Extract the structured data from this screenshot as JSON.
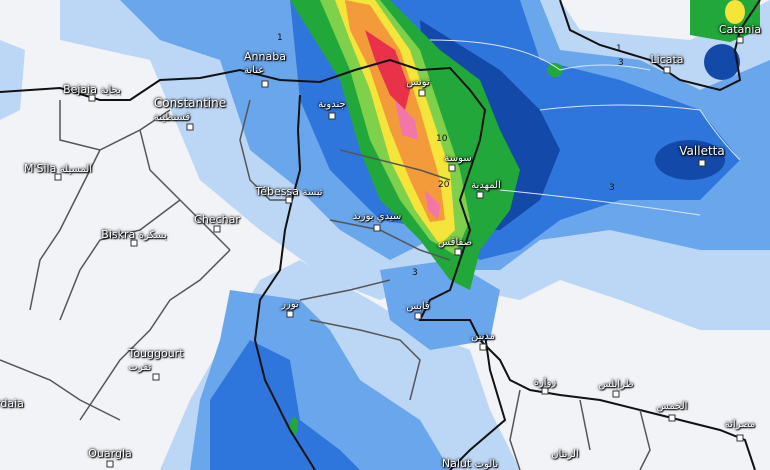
{
  "map": {
    "type": "precipitation forecast",
    "colors": {
      "land_dry": "#f1f3f6",
      "light_blue": "#bcd6f5",
      "blue": "#6aa6ec",
      "mid_blue": "#2f76dc",
      "dark_blue": "#1349a8",
      "green": "#22a83a",
      "light_green": "#7fd04a",
      "yellow": "#f5e43a",
      "orange": "#f39a3a",
      "red": "#e8324a",
      "pink": "#f277a8",
      "border": "#111111",
      "province": "#555555"
    },
    "cities": [
      {
        "name": "Annaba",
        "ar": "عنابة"
      },
      {
        "name": "Bejaia",
        "ar": "بجاية"
      },
      {
        "name": "Constantine",
        "ar": "قسنطينة"
      },
      {
        "name": "M'Sila",
        "ar": "المسيلة"
      },
      {
        "name": "Tébessa",
        "ar": "تبسة"
      },
      {
        "name": "Chechar",
        "ar": ""
      },
      {
        "name": "Biskra",
        "ar": "بسكرة"
      },
      {
        "name": "Touggourt",
        "ar": "تقرت"
      },
      {
        "name": "Ouargla",
        "ar": ""
      },
      {
        "name": "rdaia",
        "ar": ""
      },
      {
        "name": "Catania",
        "ar": ""
      },
      {
        "name": "Licata",
        "ar": ""
      },
      {
        "name": "Valletta",
        "ar": ""
      },
      {
        "name": "Nalut",
        "ar": "نالوت"
      },
      {
        "name": "",
        "ar": "تونس"
      },
      {
        "name": "",
        "ar": "جندوبة"
      },
      {
        "name": "",
        "ar": "سوسة"
      },
      {
        "name": "",
        "ar": "المهدية"
      },
      {
        "name": "",
        "ar": "سيدي بوزيد"
      },
      {
        "name": "",
        "ar": "صفاقس"
      },
      {
        "name": "",
        "ar": "توزر"
      },
      {
        "name": "",
        "ar": "قابس"
      },
      {
        "name": "",
        "ar": "مدنين"
      },
      {
        "name": "",
        "ar": "زوارة"
      },
      {
        "name": "",
        "ar": "طرابلس"
      },
      {
        "name": "",
        "ar": "الخمس"
      },
      {
        "name": "",
        "ar": "مصراتة"
      },
      {
        "name": "",
        "ar": "الزنتان"
      }
    ],
    "contours": [
      "1",
      "3",
      "10",
      "20",
      "3",
      "1",
      "3"
    ]
  }
}
